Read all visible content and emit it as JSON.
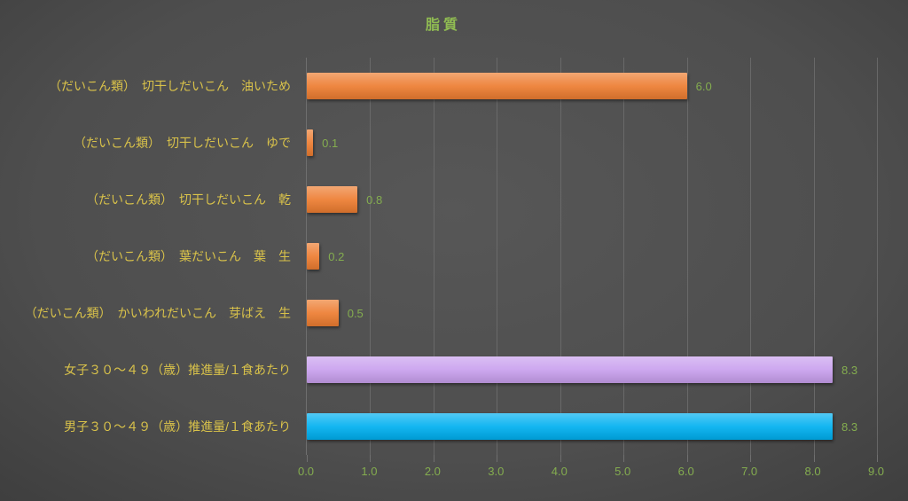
{
  "title": "脂質",
  "colors": {
    "background_center": "#575757",
    "background_edge": "#262626",
    "title": "#90bc52",
    "category_label": "#d9c24a",
    "value_label": "#84ad4f",
    "axis_label": "#84ad4f",
    "gridline": "#6f6f6f",
    "orange": "#ed7d31",
    "purple": "#c9a0ee",
    "blue": "#00b0f0"
  },
  "chart_data": {
    "type": "bar",
    "orientation": "horizontal",
    "title": "脂質",
    "categories": [
      "（だいこん類）　切干しだいこん　油いため",
      "（だいこん類）　切干しだいこん　ゆで",
      "（だいこん類）　切干しだいこん　乾",
      "（だいこん類）　葉だいこん　葉　生",
      "（だいこん類）　かいわれだいこん　芽ばえ　生",
      "女子３０～４９（歳）推進量/１食あたり",
      "男子３０～４９（歳）推進量/１食あたり"
    ],
    "values": [
      6.0,
      0.1,
      0.8,
      0.2,
      0.5,
      8.3,
      8.3
    ],
    "value_labels": [
      "6.0",
      "0.1",
      "0.8",
      "0.2",
      "0.5",
      "8.3",
      "8.3"
    ],
    "bar_colors": [
      "#ed7d31",
      "#ed7d31",
      "#ed7d31",
      "#ed7d31",
      "#ed7d31",
      "#c9a0ee",
      "#00b0f0"
    ],
    "xlim": [
      0,
      9
    ],
    "xticks": [
      "0.0",
      "1.0",
      "2.0",
      "3.0",
      "4.0",
      "5.0",
      "6.0",
      "7.0",
      "8.0",
      "9.0"
    ],
    "grid": true,
    "legend": false,
    "xlabel": "",
    "ylabel": ""
  }
}
